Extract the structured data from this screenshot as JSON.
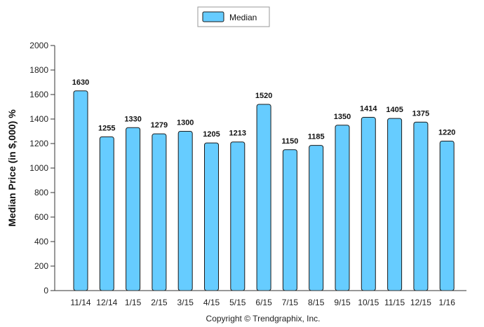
{
  "chart_data": {
    "type": "bar",
    "categories": [
      "11/14",
      "12/14",
      "1/15",
      "2/15",
      "3/15",
      "4/15",
      "5/15",
      "6/15",
      "7/15",
      "8/15",
      "9/15",
      "10/15",
      "11/15",
      "12/15",
      "1/16"
    ],
    "series": [
      {
        "name": "Median",
        "values": [
          1630,
          1255,
          1330,
          1279,
          1300,
          1205,
          1213,
          1520,
          1150,
          1185,
          1350,
          1414,
          1405,
          1375,
          1220
        ]
      }
    ],
    "value_labels": [
      "1630",
      "1255",
      "1330",
      "1279",
      "1300",
      "1205",
      "1213",
      "1520",
      "1150",
      "1185",
      "1350",
      "1414",
      "1405",
      "1375",
      "1220"
    ],
    "ylabel": "Median Price (in $,000) %",
    "ylim": [
      0,
      2000
    ],
    "yticks": [
      0,
      200,
      400,
      600,
      800,
      1000,
      1200,
      1400,
      1600,
      1800,
      2000
    ],
    "legend": "top-center",
    "grid": false,
    "colors": {
      "bar_fill": "#66ccff",
      "bar_stroke": "#1a1a1a"
    }
  },
  "footer": {
    "credit": "Copyright © Trendgraphix, Inc."
  }
}
